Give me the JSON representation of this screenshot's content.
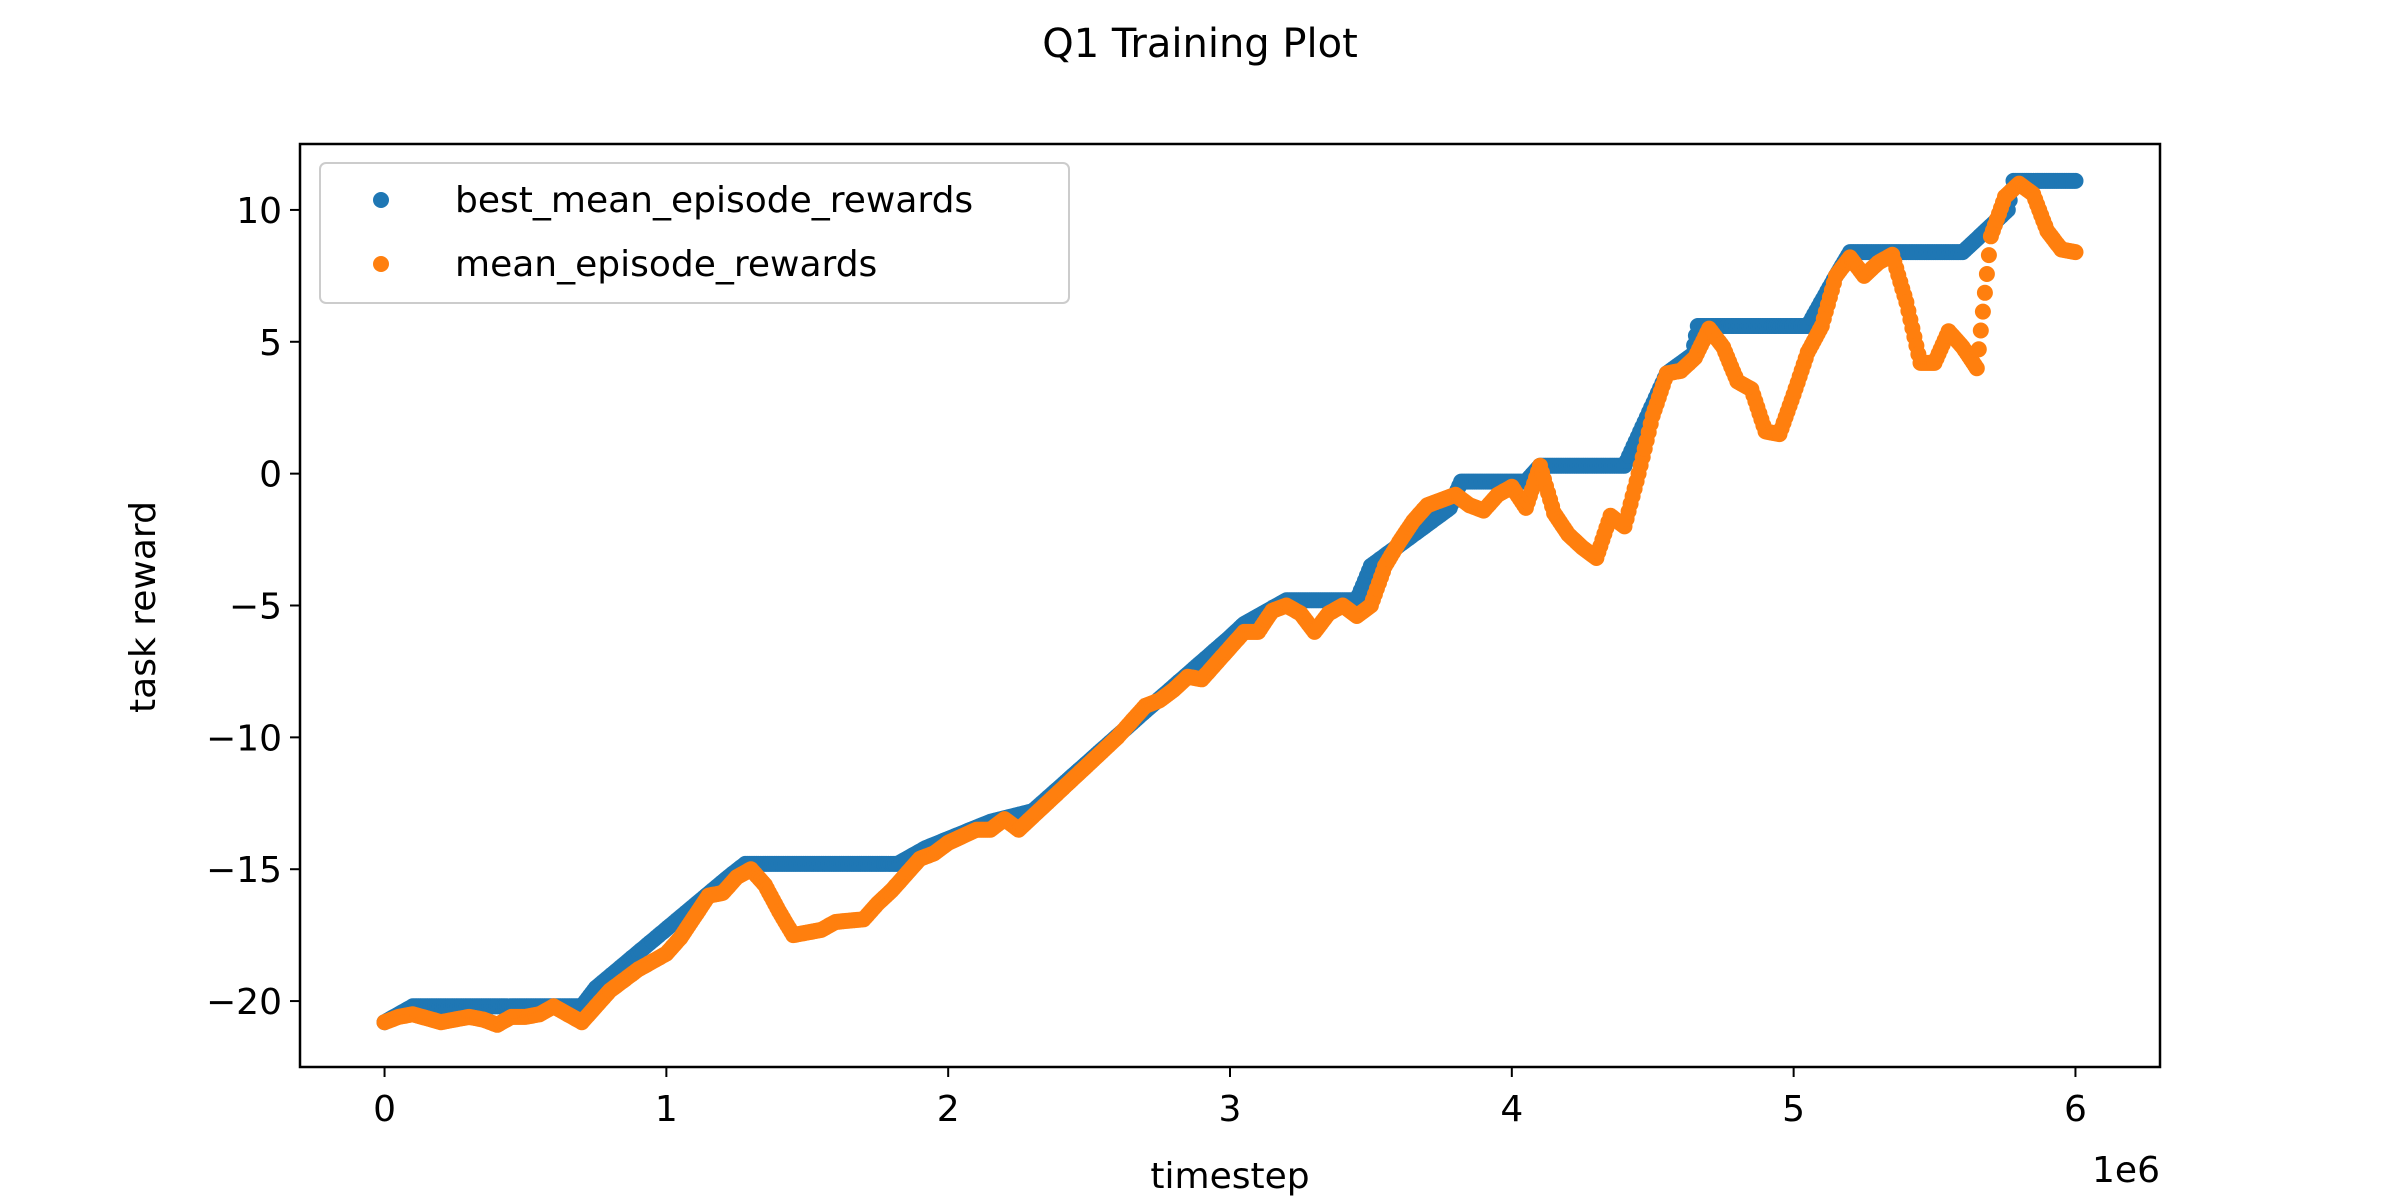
{
  "chart_data": {
    "type": "scatter",
    "title": "Q1 Training Plot",
    "xlabel": "timestep",
    "ylabel": "task reward",
    "x_offset_label": "1e6",
    "xlim": [
      -0.3,
      6.3
    ],
    "ylim": [
      -22.5,
      12.5
    ],
    "x_ticks": [
      0,
      1,
      2,
      3,
      4,
      5,
      6
    ],
    "x_tick_labels": [
      "0",
      "1",
      "2",
      "3",
      "4",
      "5",
      "6"
    ],
    "y_ticks": [
      -20,
      -15,
      -10,
      -5,
      0,
      5,
      10
    ],
    "y_tick_labels": [
      "−20",
      "−15",
      "−10",
      "−5",
      "0",
      "5",
      "10"
    ],
    "grid": false,
    "legend_position": "top-left",
    "series": [
      {
        "name": "best_mean_episode_rewards",
        "color": "#1f77b4",
        "x": [
          0.0,
          0.1,
          0.7,
          0.75,
          1.22,
          1.28,
          1.82,
          1.92,
          2.15,
          2.3,
          2.7,
          2.85,
          3.0,
          3.05,
          3.2,
          3.45,
          3.5,
          3.78,
          3.82,
          4.05,
          4.1,
          4.4,
          4.55,
          4.64,
          4.66,
          5.05,
          5.15,
          5.2,
          5.6,
          5.76,
          5.78,
          6.0
        ],
        "y": [
          -20.8,
          -20.2,
          -20.2,
          -19.5,
          -15.3,
          -14.8,
          -14.8,
          -14.2,
          -13.2,
          -12.8,
          -9.0,
          -7.6,
          -6.2,
          -5.7,
          -4.8,
          -4.8,
          -3.5,
          -1.3,
          -0.3,
          -0.3,
          0.3,
          0.3,
          3.8,
          4.5,
          5.6,
          5.6,
          7.5,
          8.4,
          8.4,
          10.0,
          11.1,
          11.1
        ]
      },
      {
        "name": "mean_episode_rewards",
        "color": "#ff7f0e",
        "x": [
          0.0,
          0.05,
          0.1,
          0.2,
          0.3,
          0.35,
          0.4,
          0.45,
          0.5,
          0.55,
          0.6,
          0.65,
          0.7,
          0.75,
          0.8,
          0.9,
          1.0,
          1.05,
          1.1,
          1.15,
          1.2,
          1.25,
          1.3,
          1.35,
          1.4,
          1.45,
          1.5,
          1.55,
          1.6,
          1.7,
          1.75,
          1.8,
          1.85,
          1.9,
          1.95,
          2.0,
          2.1,
          2.15,
          2.2,
          2.25,
          2.3,
          2.4,
          2.5,
          2.6,
          2.7,
          2.75,
          2.8,
          2.85,
          2.9,
          2.95,
          3.0,
          3.05,
          3.1,
          3.15,
          3.2,
          3.25,
          3.3,
          3.35,
          3.4,
          3.45,
          3.5,
          3.55,
          3.6,
          3.65,
          3.7,
          3.75,
          3.8,
          3.85,
          3.9,
          3.95,
          4.0,
          4.05,
          4.1,
          4.15,
          4.2,
          4.25,
          4.3,
          4.35,
          4.4,
          4.45,
          4.5,
          4.55,
          4.6,
          4.65,
          4.7,
          4.75,
          4.8,
          4.85,
          4.9,
          4.95,
          5.0,
          5.05,
          5.1,
          5.15,
          5.2,
          5.25,
          5.3,
          5.35,
          5.4,
          5.45,
          5.5,
          5.55,
          5.6,
          5.65,
          5.7,
          5.75,
          5.8,
          5.85,
          5.9,
          5.95,
          6.0
        ],
        "y": [
          -20.8,
          -20.6,
          -20.5,
          -20.8,
          -20.6,
          -20.7,
          -20.9,
          -20.6,
          -20.6,
          -20.5,
          -20.2,
          -20.5,
          -20.8,
          -20.2,
          -19.6,
          -18.8,
          -18.2,
          -17.6,
          -16.8,
          -16.0,
          -15.9,
          -15.3,
          -15.0,
          -15.6,
          -16.6,
          -17.5,
          -17.4,
          -17.3,
          -17.0,
          -16.9,
          -16.3,
          -15.8,
          -15.2,
          -14.6,
          -14.4,
          -14.0,
          -13.5,
          -13.5,
          -13.1,
          -13.5,
          -13.0,
          -12.0,
          -11.0,
          -10.0,
          -8.8,
          -8.6,
          -8.2,
          -7.7,
          -7.8,
          -7.2,
          -6.6,
          -6.0,
          -6.0,
          -5.2,
          -5.0,
          -5.3,
          -6.0,
          -5.3,
          -5.0,
          -5.4,
          -5.0,
          -3.5,
          -2.6,
          -1.8,
          -1.2,
          -1.0,
          -0.8,
          -1.2,
          -1.4,
          -0.8,
          -0.5,
          -1.3,
          0.3,
          -1.5,
          -2.3,
          -2.8,
          -3.2,
          -1.6,
          -2.0,
          0.0,
          2.2,
          3.8,
          3.9,
          4.4,
          5.5,
          4.8,
          3.5,
          3.2,
          1.6,
          1.5,
          3.0,
          4.6,
          5.6,
          7.5,
          8.2,
          7.5,
          8.0,
          8.3,
          6.5,
          4.2,
          4.2,
          5.4,
          4.8,
          4.0,
          9.0,
          10.5,
          11.0,
          10.6,
          9.2,
          8.5,
          8.4
        ]
      }
    ]
  }
}
